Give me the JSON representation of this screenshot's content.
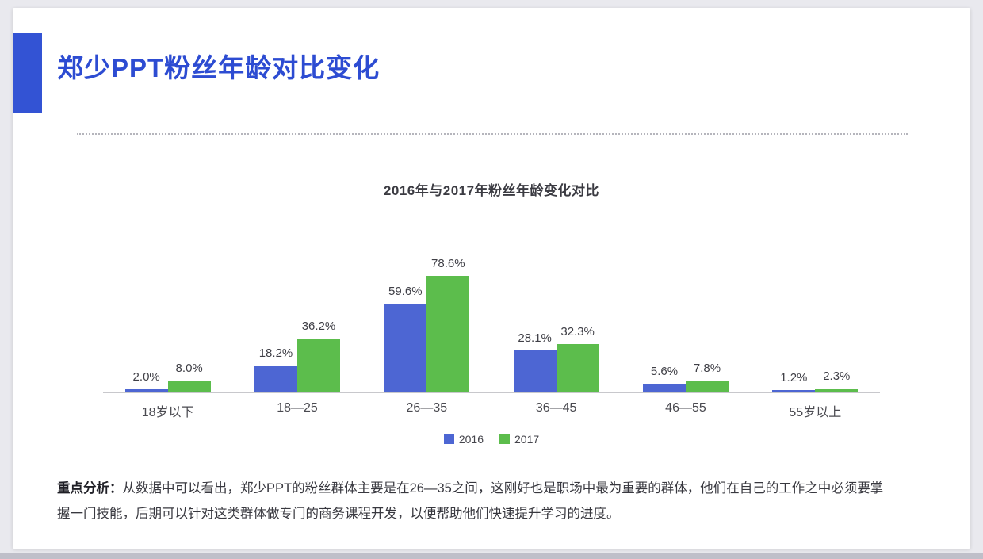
{
  "slide": {
    "title": "郑少PPT粉丝年龄对比变化",
    "analysis": {
      "label": "重点分析：",
      "text": "从数据中可以看出，郑少PPT的粉丝群体主要是在26—35之间，这刚好也是职场中最为重要的群体，他们在自己的工作之中必须要掌握一门技能，后期可以针对这类群体做专门的商务课程开发，以便帮助他们快速提升学习的进度。"
    }
  },
  "chart_data": {
    "type": "bar",
    "title": "2016年与2017年粉丝年龄变化对比",
    "categories": [
      "18岁以下",
      "18—25",
      "26—35",
      "36—45",
      "46—55",
      "55岁以上"
    ],
    "series": [
      {
        "name": "2016",
        "color": "#4d66d3",
        "values": [
          2.0,
          18.2,
          59.6,
          28.1,
          5.6,
          1.2
        ]
      },
      {
        "name": "2017",
        "color": "#5cbd4c",
        "values": [
          8.0,
          36.2,
          78.6,
          32.3,
          7.8,
          2.3
        ]
      }
    ],
    "value_suffix": "%",
    "ylim": [
      0,
      80
    ],
    "legend_entries": [
      "2016",
      "2017"
    ],
    "legend_position": "bottom",
    "grid": false
  },
  "colors": {
    "title_blue": "#2d4cd2",
    "accent_blue": "#3353d4",
    "bar_blue": "#4d66d3",
    "bar_green": "#5cbd4c",
    "background": "#e9e9ee",
    "slide_background": "#ffffff",
    "axis_line": "#c8c8cc",
    "text_dark": "#38383f"
  }
}
